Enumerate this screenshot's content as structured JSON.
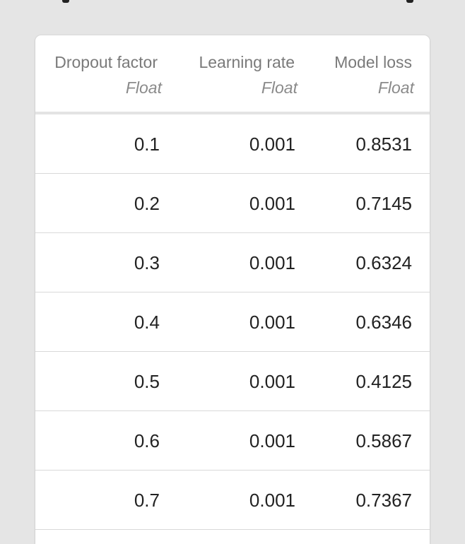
{
  "table": {
    "columns": [
      {
        "name": "Dropout factor",
        "type": "Float"
      },
      {
        "name": "Learning rate",
        "type": "Float"
      },
      {
        "name": "Model loss",
        "type": "Float"
      }
    ],
    "rows": [
      [
        "0.1",
        "0.001",
        "0.8531"
      ],
      [
        "0.2",
        "0.001",
        "0.7145"
      ],
      [
        "0.3",
        "0.001",
        "0.6324"
      ],
      [
        "0.4",
        "0.001",
        "0.6346"
      ],
      [
        "0.5",
        "0.001",
        "0.4125"
      ],
      [
        "0.6",
        "0.001",
        "0.5867"
      ],
      [
        "0.7",
        "0.001",
        "0.7367"
      ]
    ]
  }
}
